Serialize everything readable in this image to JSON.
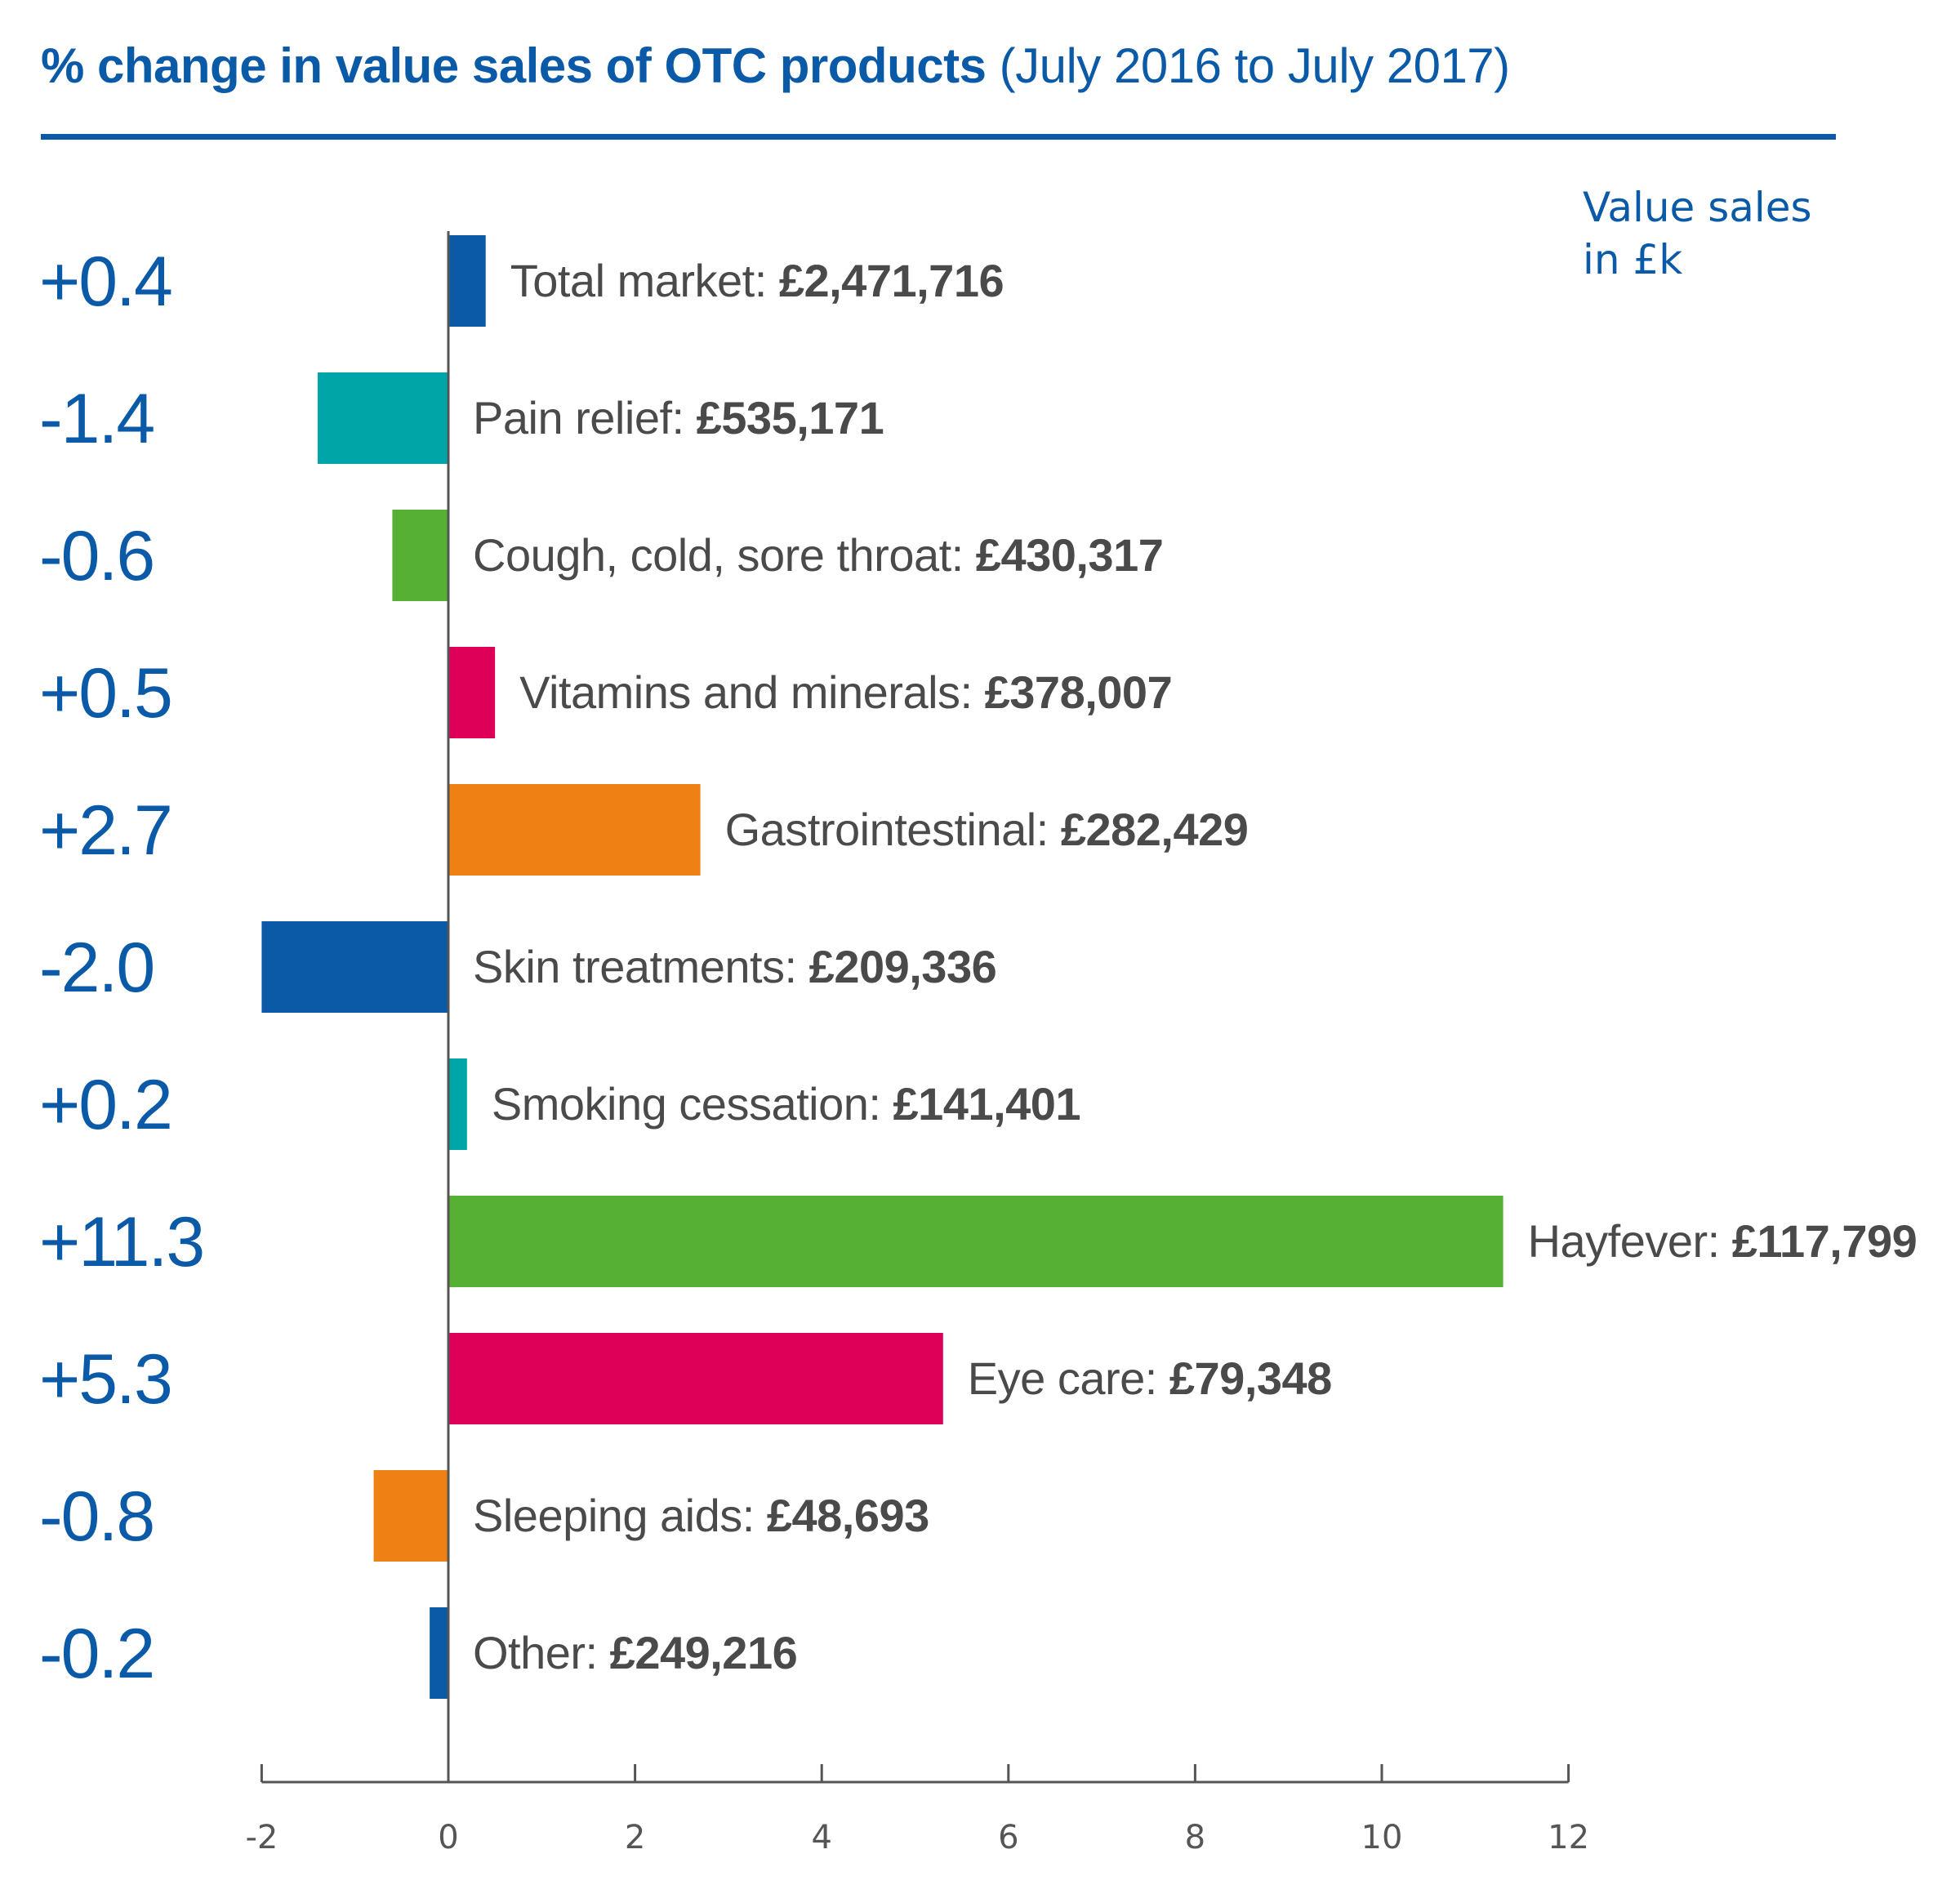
{
  "title": {
    "main": "% change in value sales of OTC products",
    "sub": "(July 2016 to July 2017)"
  },
  "value_note": "Value sales in £k",
  "chart_data": {
    "type": "bar",
    "orientation": "horizontal",
    "title": "% change in value sales of OTC products (July 2016 to July 2017)",
    "value_unit_note": "Value sales in £k",
    "xlim": [
      -2,
      12
    ],
    "xticks": [
      -2,
      0,
      2,
      4,
      6,
      8,
      10,
      12
    ],
    "grid": false,
    "categories": [
      {
        "name": "Total market",
        "value_label": "+0.4",
        "change": 0.4,
        "sales": "£2,471,716",
        "color": "#0a5aa8"
      },
      {
        "name": "Pain relief",
        "value_label": "-1.4",
        "change": -1.4,
        "sales": "£535,171",
        "color": "#00a5a8"
      },
      {
        "name": "Cough, cold, sore throat",
        "value_label": "-0.6",
        "change": -0.6,
        "sales": "£430,317",
        "color": "#55b033"
      },
      {
        "name": "Vitamins and minerals",
        "value_label": "+0.5",
        "change": 0.5,
        "sales": "£378,007",
        "color": "#de0058"
      },
      {
        "name": "Gastrointestinal",
        "value_label": "+2.7",
        "change": 2.7,
        "sales": "£282,429",
        "color": "#ef8114"
      },
      {
        "name": "Skin treatments",
        "value_label": "-2.0",
        "change": -2.0,
        "sales": "£209,336",
        "color": "#0a5aa8"
      },
      {
        "name": "Smoking cessation",
        "value_label": "+0.2",
        "change": 0.2,
        "sales": "£141,401",
        "color": "#00a5a8"
      },
      {
        "name": "Hayfever",
        "value_label": "+11.3",
        "change": 11.3,
        "sales": "£117,799",
        "color": "#55b033"
      },
      {
        "name": "Eye care",
        "value_label": "+5.3",
        "change": 5.3,
        "sales": "£79,348",
        "color": "#de0058"
      },
      {
        "name": "Sleeping aids",
        "value_label": "-0.8",
        "change": -0.8,
        "sales": "£48,693",
        "color": "#ef8114"
      },
      {
        "name": "Other",
        "value_label": "-0.2",
        "change": -0.2,
        "sales": "£249,216",
        "color": "#0a5aa8"
      }
    ]
  }
}
